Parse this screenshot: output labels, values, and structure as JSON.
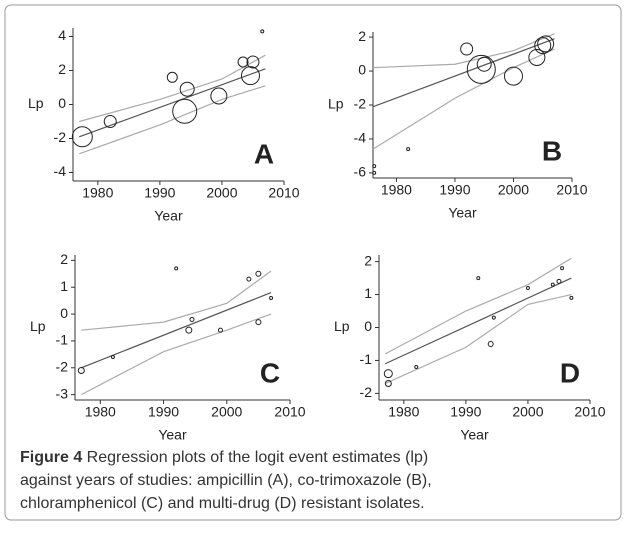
{
  "chart_data": [
    {
      "type": "scatter",
      "label": "A",
      "x_label": "Year",
      "y_label": "Lp",
      "x": [
        1977.5,
        1982,
        1992,
        1994.4,
        1994,
        1999.5,
        2003.4,
        2005,
        2004.6,
        2006.5
      ],
      "values": [
        -1.9,
        -1.0,
        1.6,
        0.9,
        -0.4,
        0.5,
        2.5,
        2.5,
        1.7,
        4.3
      ],
      "sizes": [
        10,
        6,
        5,
        7,
        12,
        8,
        5,
        6,
        9,
        1.5
      ],
      "xlim": [
        1976,
        2010
      ],
      "ylim": [
        -4.5,
        4.5
      ],
      "xticks": [
        1980,
        1990,
        2000,
        2010
      ],
      "yticks": [
        -4,
        -2,
        0,
        2,
        4
      ],
      "fit": {
        "x": [
          1977,
          2007
        ],
        "values": [
          -1.9,
          2.1
        ]
      },
      "ci_upper": {
        "x": [
          1977,
          1990,
          2000,
          2007
        ],
        "values": [
          -1.0,
          0.3,
          1.5,
          2.9
        ]
      },
      "ci_lower": {
        "x": [
          1977,
          1990,
          2000,
          2007
        ],
        "values": [
          -2.9,
          -1.2,
          0.3,
          1.1
        ]
      },
      "color": "#222222",
      "fit_color": "#555555",
      "ci_color": "#aaaaaa"
    },
    {
      "type": "scatter",
      "label": "B",
      "x_label": "Year",
      "y_label": "Lp",
      "x": [
        1976.2,
        1976.2,
        1982,
        1992,
        1994.5,
        1995,
        2000,
        2004,
        2005,
        2005.5
      ],
      "values": [
        -6.0,
        -5.6,
        -4.6,
        1.3,
        0.1,
        0.4,
        -0.3,
        0.8,
        1.5,
        1.6
      ],
      "sizes": [
        1.5,
        1.5,
        1.5,
        6,
        14,
        7,
        9,
        8,
        8,
        8
      ],
      "xlim": [
        1976,
        2010
      ],
      "ylim": [
        -6.3,
        2.3
      ],
      "xticks": [
        1980,
        1990,
        2000,
        2010
      ],
      "yticks": [
        -6,
        -4,
        -2,
        0,
        2
      ],
      "fit": {
        "x": [
          1976,
          2007
        ],
        "values": [
          -2.1,
          1.9
        ]
      },
      "ci_upper": {
        "x": [
          1976,
          1990,
          2000,
          2007
        ],
        "values": [
          0.2,
          0.4,
          1.2,
          2.2
        ]
      },
      "ci_lower": {
        "x": [
          1976,
          1990,
          2000,
          2007
        ],
        "values": [
          -4.6,
          -1.6,
          0.2,
          1.3
        ]
      },
      "color": "#222222",
      "fit_color": "#555555",
      "ci_color": "#aaaaaa"
    },
    {
      "type": "scatter",
      "label": "C",
      "x_label": "Year",
      "y_label": "Lp",
      "x": [
        1977,
        1982,
        1992,
        1994.5,
        1994,
        1999,
        2003.5,
        2005,
        2005,
        2007
      ],
      "values": [
        -2.1,
        -1.6,
        1.7,
        -0.2,
        -0.6,
        -0.6,
        1.3,
        1.5,
        -0.3,
        0.6
      ],
      "sizes": [
        3,
        1.5,
        1.5,
        2,
        3,
        2,
        2,
        2.5,
        2.5,
        1.5
      ],
      "xlim": [
        1976,
        2010
      ],
      "ylim": [
        -3.2,
        2.2
      ],
      "xticks": [
        1980,
        1990,
        2000,
        2010
      ],
      "yticks": [
        -3,
        -2,
        -1,
        0,
        1,
        2
      ],
      "fit": {
        "x": [
          1977,
          2007
        ],
        "values": [
          -2.0,
          0.8
        ]
      },
      "ci_upper": {
        "x": [
          1977,
          1990,
          2000,
          2007
        ],
        "values": [
          -0.6,
          -0.3,
          0.4,
          1.6
        ]
      },
      "ci_lower": {
        "x": [
          1977,
          1990,
          2000,
          2007
        ],
        "values": [
          -3.0,
          -1.4,
          -0.6,
          0.0
        ]
      },
      "color": "#222222",
      "fit_color": "#555555",
      "ci_color": "#aaaaaa"
    },
    {
      "type": "scatter",
      "label": "D",
      "x_label": "Year",
      "y_label": "Lp",
      "x": [
        1977.5,
        1977.5,
        1982,
        1992,
        1994.5,
        1994,
        2000,
        2004,
        2005,
        2005.5,
        2007
      ],
      "values": [
        -1.4,
        -1.7,
        -1.2,
        1.5,
        0.3,
        -0.5,
        1.2,
        1.3,
        1.4,
        1.8,
        0.9
      ],
      "sizes": [
        4,
        3,
        1.5,
        1.5,
        1.5,
        2.5,
        1.5,
        1.5,
        2,
        1.5,
        1.5
      ],
      "xlim": [
        1976,
        2010
      ],
      "ylim": [
        -2.2,
        2.2
      ],
      "xticks": [
        1980,
        1990,
        2000,
        2010
      ],
      "yticks": [
        -2,
        -1,
        0,
        1,
        2
      ],
      "fit": {
        "x": [
          1977,
          2007
        ],
        "values": [
          -1.1,
          1.5
        ]
      },
      "ci_upper": {
        "x": [
          1977,
          1990,
          2000,
          2007
        ],
        "values": [
          -0.8,
          0.5,
          1.3,
          2.1
        ]
      },
      "ci_lower": {
        "x": [
          1977,
          1990,
          2000,
          2007
        ],
        "values": [
          -1.7,
          -0.6,
          0.7,
          1.0
        ]
      },
      "color": "#222222",
      "fit_color": "#555555",
      "ci_color": "#aaaaaa"
    }
  ],
  "caption": {
    "label": "Figure 4",
    "lines": [
      " Regression plots of the logit event estimates (lp)",
      "against years of studies:  ampicillin (A), co-trimoxazole (B),",
      "chloramphenicol (C) and multi-drug (D) resistant isolates."
    ]
  }
}
